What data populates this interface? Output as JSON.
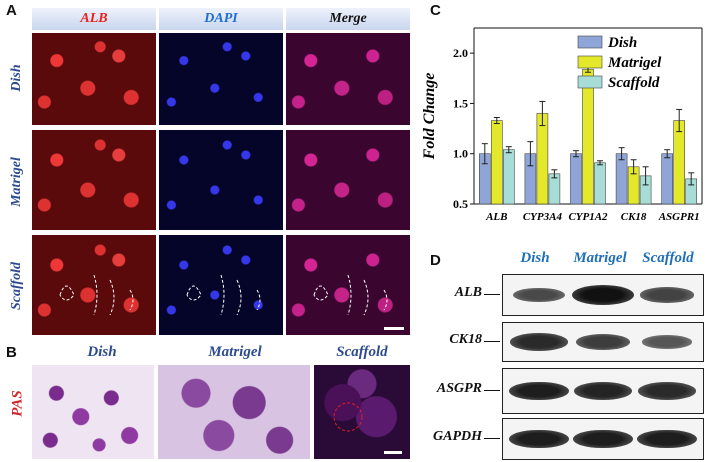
{
  "panels": {
    "a_letter": "A",
    "b_letter": "B",
    "c_letter": "C",
    "d_letter": "D"
  },
  "panel_a": {
    "col_headers": [
      "ALB",
      "DAPI",
      "Merge"
    ],
    "col_colors": [
      "#e8221c",
      "#1e6fd0",
      "#111111"
    ],
    "row_labels": [
      "Dish",
      "Matrigel",
      "Scaffold"
    ]
  },
  "panel_b": {
    "stain_label": "PAS",
    "stain_color": "#d0252a",
    "col_headers": [
      "Dish",
      "Matrigel",
      "Scaffold"
    ]
  },
  "panel_d": {
    "lane_headers": [
      "Dish",
      "Matrigel",
      "Scaffold"
    ],
    "proteins": [
      "ALB",
      "CK18",
      "ASGPR",
      "GAPDH"
    ],
    "band_intensity": [
      [
        0.55,
        1.0,
        0.6
      ],
      [
        0.8,
        0.65,
        0.45
      ],
      [
        0.9,
        0.85,
        0.8
      ],
      [
        0.9,
        0.9,
        0.9
      ]
    ]
  },
  "chart_data": {
    "type": "bar",
    "title": "",
    "xlabel": "",
    "ylabel": "Fold Change",
    "ylim": [
      0.5,
      2.25
    ],
    "yticks": [
      "0.5",
      "1.0",
      "1.5",
      "2.0"
    ],
    "grid": false,
    "legend_position": "top-right",
    "categories": [
      "ALB",
      "CYP3A4",
      "CYP1A2",
      "CK18",
      "ASGPR1"
    ],
    "series": [
      {
        "name": "Dish",
        "color": "#8fa5d8",
        "values": [
          1.0,
          1.0,
          1.0,
          1.0,
          1.0
        ],
        "errors": [
          0.1,
          0.12,
          0.03,
          0.06,
          0.04
        ]
      },
      {
        "name": "Matrigel",
        "color": "#e3e82a",
        "values": [
          1.33,
          1.4,
          1.84,
          0.87,
          1.33
        ],
        "errors": [
          0.03,
          0.12,
          0.03,
          0.07,
          0.11
        ]
      },
      {
        "name": "Scaffold",
        "color": "#a8dcd6",
        "values": [
          1.04,
          0.8,
          0.91,
          0.78,
          0.75
        ],
        "errors": [
          0.03,
          0.04,
          0.02,
          0.09,
          0.06
        ]
      }
    ]
  }
}
